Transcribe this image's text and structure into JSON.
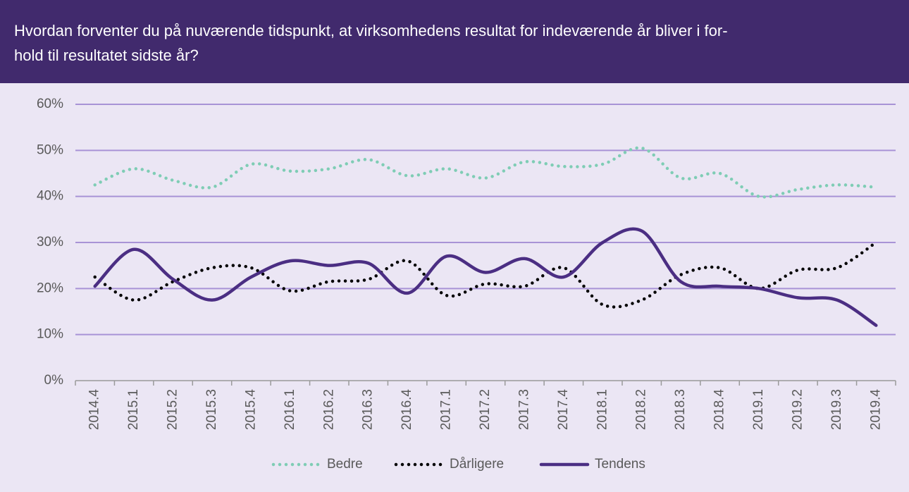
{
  "chart_data": {
    "type": "line",
    "title_lines": [
      "Hvordan forventer du på nuværende tidspunkt, at virksomhedens resultat for indeværende år bliver i for-",
      "hold til resultatet sidste år?"
    ],
    "categories": [
      "2014.4",
      "2015.1",
      "2015.2",
      "2015.3",
      "2015.4",
      "2016.1",
      "2016.2",
      "2016.3",
      "2016.4",
      "2017.1",
      "2017.2",
      "2017.3",
      "2017.4",
      "2018.1",
      "2018.2",
      "2018.3",
      "2018.4",
      "2019.1",
      "2019.2",
      "2019.3",
      "2019.4"
    ],
    "series": [
      {
        "name": "Bedre",
        "color": "#7fcdb5",
        "style": "dotted",
        "values": [
          42.5,
          46,
          43.5,
          42,
          47,
          45.5,
          46,
          48,
          44.5,
          46,
          44,
          47.5,
          46.5,
          47,
          50.5,
          44,
          45,
          40,
          41.5,
          42.5,
          42
        ]
      },
      {
        "name": "Dårligere",
        "color": "#000000",
        "style": "dotted",
        "values": [
          22.5,
          17.5,
          21.5,
          24.5,
          24.5,
          19.5,
          21.5,
          22,
          26,
          18.5,
          21,
          20.5,
          24.5,
          16.5,
          17.5,
          23,
          24.5,
          20,
          24,
          24.5,
          30
        ]
      },
      {
        "name": "Tendens",
        "color": "#4b2e83",
        "style": "solid",
        "values": [
          20.5,
          28.5,
          22,
          17.5,
          22.5,
          26,
          25,
          25.5,
          19,
          27,
          23.5,
          26.5,
          22.5,
          30,
          32.5,
          21.5,
          20.5,
          20,
          18,
          17.5,
          12
        ]
      }
    ],
    "ylim": [
      0,
      60
    ],
    "yticks": [
      {
        "value": 0,
        "label": "0%"
      },
      {
        "value": 10,
        "label": "10%"
      },
      {
        "value": 20,
        "label": "20%"
      },
      {
        "value": 30,
        "label": "30%"
      },
      {
        "value": 40,
        "label": "40%"
      },
      {
        "value": 50,
        "label": "50%"
      },
      {
        "value": 60,
        "label": "60%"
      }
    ],
    "grid": true,
    "legend": "bottom"
  }
}
